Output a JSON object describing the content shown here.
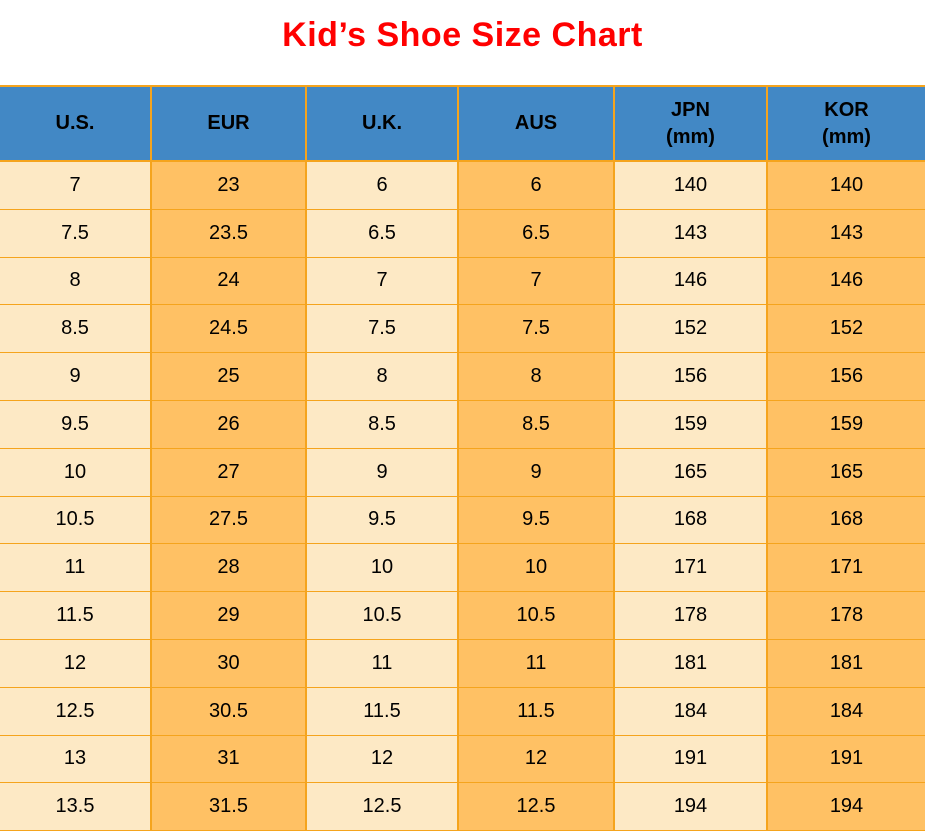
{
  "page": {
    "title": "Kid’s Shoe Size Chart"
  },
  "colors": {
    "title_text": "#FF0000",
    "header_bg": "#4288C5",
    "header_text": "#000000",
    "cell_text": "#000000",
    "cell_light": "#FDE9C5",
    "cell_orange": "#FFC164",
    "grid_border": "#F5A41D"
  },
  "chart_data": {
    "type": "table",
    "title": "Kid’s Shoe Size Chart",
    "columns": [
      {
        "key": "us",
        "label": "U.S.",
        "sub": ""
      },
      {
        "key": "eur",
        "label": "EUR",
        "sub": ""
      },
      {
        "key": "uk",
        "label": "U.K.",
        "sub": ""
      },
      {
        "key": "aus",
        "label": "AUS",
        "sub": ""
      },
      {
        "key": "jpn",
        "label": "JPN",
        "sub": "(mm)"
      },
      {
        "key": "kor",
        "label": "KOR",
        "sub": "(mm)"
      }
    ],
    "rows": [
      [
        "7",
        "23",
        "6",
        "6",
        "140",
        "140"
      ],
      [
        "7.5",
        "23.5",
        "6.5",
        "6.5",
        "143",
        "143"
      ],
      [
        "8",
        "24",
        "7",
        "7",
        "146",
        "146"
      ],
      [
        "8.5",
        "24.5",
        "7.5",
        "7.5",
        "152",
        "152"
      ],
      [
        "9",
        "25",
        "8",
        "8",
        "156",
        "156"
      ],
      [
        "9.5",
        "26",
        "8.5",
        "8.5",
        "159",
        "159"
      ],
      [
        "10",
        "27",
        "9",
        "9",
        "165",
        "165"
      ],
      [
        "10.5",
        "27.5",
        "9.5",
        "9.5",
        "168",
        "168"
      ],
      [
        "11",
        "28",
        "10",
        "10",
        "171",
        "171"
      ],
      [
        "11.5",
        "29",
        "10.5",
        "10.5",
        "178",
        "178"
      ],
      [
        "12",
        "30",
        "11",
        "11",
        "181",
        "181"
      ],
      [
        "12.5",
        "30.5",
        "11.5",
        "11.5",
        "184",
        "184"
      ],
      [
        "13",
        "31",
        "12",
        "12",
        "191",
        "191"
      ],
      [
        "13.5",
        "31.5",
        "12.5",
        "12.5",
        "194",
        "194"
      ]
    ]
  }
}
